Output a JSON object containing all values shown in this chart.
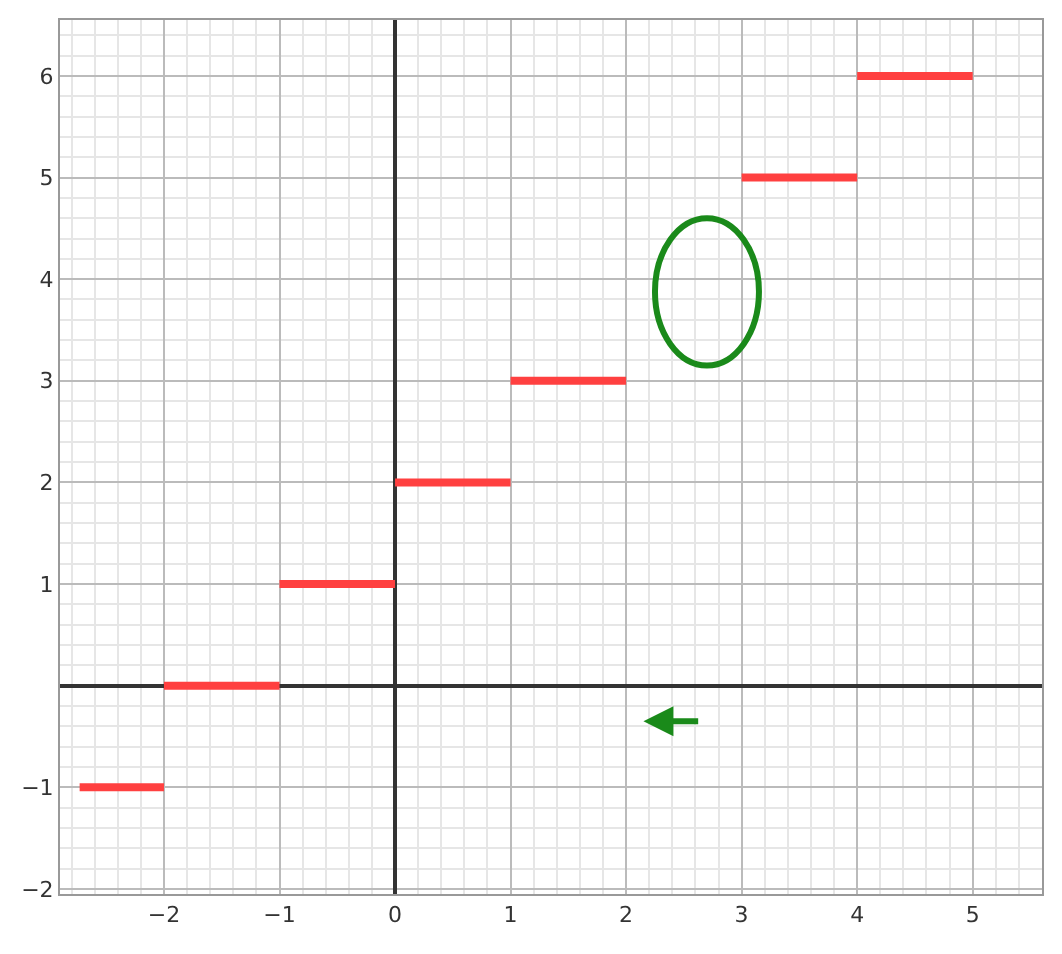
{
  "chart_data": {
    "type": "line",
    "x": [
      -2.73,
      -2,
      null,
      -2,
      -1,
      null,
      -1,
      0,
      null,
      0,
      1,
      null,
      1,
      2,
      null,
      3,
      4,
      null,
      4,
      5
    ],
    "series": [
      {
        "color": "#ff4040",
        "values": [
          -1,
          -1,
          null,
          0,
          0,
          null,
          1,
          1,
          null,
          2,
          2,
          null,
          3,
          3,
          null,
          5,
          5,
          null,
          6,
          6
        ]
      }
    ],
    "xlim": [
      -2.9,
      5.6
    ],
    "ylim": [
      -2.05,
      6.55
    ],
    "xticks": [
      -2,
      -1,
      0,
      1,
      2,
      3,
      4,
      5
    ],
    "yticks": [
      -2,
      -1,
      1,
      2,
      3,
      4,
      5,
      6
    ],
    "grid": true,
    "marker": "none",
    "line_style": "solid"
  }
}
